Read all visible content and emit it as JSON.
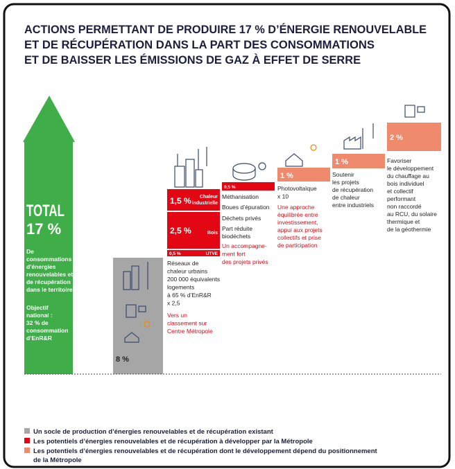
{
  "title": [
    "ACTIONS PERMETTANT DE PRODUIRE 17 % D’ÉNERGIE RENOUVELABLE",
    "ET DE RÉCUPÉRATION DANS LA PART DES CONSOMMATIONS",
    "ET DE BAISSER LES ÉMISSIONS DE GAZ À EFFET DE SERRE"
  ],
  "total": {
    "label": "TOTAL",
    "value": "17 %",
    "description": [
      "De",
      "consommations",
      "d’énergies",
      "renouvelables et",
      "de récupération",
      "dans le territoire"
    ],
    "objective": [
      "Objectif",
      "national :",
      "32 % de",
      "consommation",
      "d’EnR&R"
    ]
  },
  "existing": {
    "value": "8 %"
  },
  "metropole": {
    "blocks": [
      {
        "value": "1,5 %",
        "label": [
          "Chaleur",
          "industrielle"
        ]
      },
      {
        "value": "2,5 %",
        "label": [
          "Bois"
        ]
      },
      {
        "value": "0,5 %",
        "label": [
          "UTVE"
        ]
      }
    ],
    "text": [
      "Réseaux de",
      "chaleur urbains",
      "200 000 équivalents",
      "logements",
      "à 65 % d’EnR&R",
      "x 2,5"
    ],
    "note": [
      "Vers un",
      "classement sur",
      "Centre Métropole"
    ]
  },
  "methanisation": {
    "value": "0,5 %",
    "text": [
      "Méthanisation",
      "Boues d’épuration",
      "Déchets privés",
      "Part réduite",
      "biodéchets"
    ],
    "note": [
      "Un accompagne-",
      "ment fort",
      "des projets privés"
    ]
  },
  "photovoltaic": {
    "value": "1 %",
    "text": [
      "Photovoltaïque",
      "x 10"
    ],
    "note": [
      "Une approche",
      "équilibrée entre",
      "investissement,",
      "appui aux projets",
      "collectifs et prise",
      "de participation"
    ]
  },
  "industrial": {
    "value": "1 %",
    "text": [
      "Soutenir",
      "les projets",
      "de récupération",
      "de chaleur",
      "entre industriels"
    ]
  },
  "wood": {
    "value": "2 %",
    "text": [
      "Favoriser",
      "le développement",
      "du chauffage au",
      "bois individuel",
      "et collectif",
      "performant",
      "non raccordé",
      "au RCU, du solaire",
      "thermique et",
      "de la géothermie"
    ]
  },
  "legend": [
    {
      "color": "#a6a6a6",
      "text": [
        "Un socle de production d’énergies renouvelables et de récupération existant"
      ]
    },
    {
      "color": "#e30613",
      "text": [
        "Les potentiels d’énergies renouvelables et de récupération à développer par la Métropole"
      ]
    },
    {
      "color": "#f08a6c",
      "text": [
        "Les potentiels d’énergies renouvelables et de récupération dont le développement dépend du positionnement",
        "de la Métropole"
      ]
    }
  ]
}
